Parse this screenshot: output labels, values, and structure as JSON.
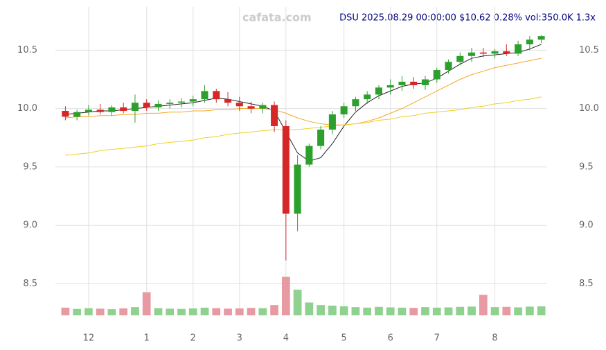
{
  "chart_data": {
    "type": "candlestick",
    "title": "DSU 2025.08.29 00:00:00 $10.62 0.28% vol:350.0K 1.3x",
    "watermark": "cafata.com",
    "categories": [
      null,
      null,
      "12",
      null,
      null,
      null,
      null,
      "1",
      null,
      null,
      null,
      "2",
      null,
      null,
      null,
      "3",
      null,
      null,
      null,
      "4",
      null,
      null,
      null,
      null,
      "5",
      null,
      null,
      null,
      "6",
      null,
      null,
      null,
      "7",
      null,
      null,
      null,
      null,
      "8",
      null,
      null,
      null,
      null
    ],
    "open": [
      9.98,
      9.93,
      9.97,
      9.99,
      9.97,
      10.01,
      9.98,
      10.05,
      10.01,
      10.04,
      10.05,
      10.06,
      10.08,
      10.15,
      10.08,
      10.05,
      10.02,
      10.0,
      10.03,
      9.85,
      9.1,
      9.52,
      9.68,
      9.82,
      9.95,
      10.02,
      10.08,
      10.12,
      10.18,
      10.2,
      10.23,
      10.2,
      10.25,
      10.33,
      10.4,
      10.45,
      10.48,
      10.47,
      10.49,
      10.47,
      10.55,
      10.59
    ],
    "high": [
      10.02,
      9.99,
      10.03,
      10.04,
      10.03,
      10.05,
      10.12,
      10.08,
      10.07,
      10.08,
      10.09,
      10.11,
      10.2,
      10.17,
      10.14,
      10.1,
      10.06,
      10.05,
      10.06,
      9.9,
      9.6,
      9.7,
      9.85,
      9.98,
      10.05,
      10.1,
      10.15,
      10.2,
      10.25,
      10.28,
      10.27,
      10.28,
      10.35,
      10.42,
      10.48,
      10.52,
      10.52,
      10.51,
      10.55,
      10.58,
      10.62,
      10.63
    ],
    "low": [
      9.9,
      9.9,
      9.94,
      9.95,
      9.94,
      9.96,
      9.88,
      9.98,
      9.98,
      10.0,
      10.01,
      10.02,
      10.05,
      10.05,
      10.02,
      9.98,
      9.96,
      9.96,
      9.8,
      8.7,
      8.95,
      9.5,
      9.65,
      9.78,
      9.92,
      9.98,
      10.04,
      10.08,
      10.12,
      10.15,
      10.17,
      10.16,
      10.22,
      10.3,
      10.37,
      10.4,
      10.44,
      10.43,
      10.45,
      10.45,
      10.5,
      10.56
    ],
    "close": [
      9.93,
      9.97,
      9.99,
      9.97,
      10.01,
      9.98,
      10.05,
      10.01,
      10.04,
      10.05,
      10.06,
      10.08,
      10.15,
      10.08,
      10.05,
      10.02,
      10.0,
      10.03,
      9.85,
      9.1,
      9.52,
      9.68,
      9.82,
      9.95,
      10.02,
      10.08,
      10.12,
      10.18,
      10.2,
      10.23,
      10.2,
      10.25,
      10.33,
      10.4,
      10.45,
      10.48,
      10.47,
      10.49,
      10.47,
      10.55,
      10.59,
      10.62
    ],
    "up_color": "#2ca02c",
    "down_color": "#d62728",
    "lines": [
      {
        "color": "#222222",
        "values": [
          9.95,
          9.96,
          9.97,
          9.98,
          9.98,
          9.99,
          10.0,
          10.01,
          10.02,
          10.03,
          10.04,
          10.05,
          10.07,
          10.09,
          10.08,
          10.06,
          10.04,
          10.02,
          9.98,
          9.8,
          9.62,
          9.55,
          9.58,
          9.7,
          9.85,
          9.97,
          10.05,
          10.11,
          10.15,
          10.19,
          10.21,
          10.22,
          10.26,
          10.32,
          10.38,
          10.43,
          10.45,
          10.46,
          10.47,
          10.48,
          10.51,
          10.55
        ]
      },
      {
        "color": "#f5a623",
        "values": [
          9.92,
          9.93,
          9.93,
          9.94,
          9.94,
          9.95,
          9.95,
          9.96,
          9.96,
          9.97,
          9.97,
          9.98,
          9.98,
          9.99,
          9.99,
          10.0,
          10.0,
          10.0,
          9.99,
          9.96,
          9.92,
          9.89,
          9.87,
          9.86,
          9.86,
          9.87,
          9.89,
          9.92,
          9.96,
          10.0,
          10.05,
          10.1,
          10.15,
          10.2,
          10.25,
          10.29,
          10.32,
          10.35,
          10.37,
          10.39,
          10.41,
          10.43
        ]
      },
      {
        "color": "#f0d020",
        "values": [
          9.6,
          9.61,
          9.62,
          9.64,
          9.65,
          9.66,
          9.67,
          9.68,
          9.7,
          9.71,
          9.72,
          9.73,
          9.75,
          9.76,
          9.78,
          9.79,
          9.8,
          9.81,
          9.82,
          9.82,
          9.82,
          9.83,
          9.84,
          9.85,
          9.86,
          9.87,
          9.88,
          9.9,
          9.91,
          9.93,
          9.94,
          9.96,
          9.97,
          9.98,
          9.99,
          10.01,
          10.02,
          10.04,
          10.05,
          10.07,
          10.08,
          10.1
        ]
      }
    ],
    "volume": {
      "axis": "y2",
      "values": [
        300,
        250,
        280,
        260,
        240,
        270,
        320,
        900,
        280,
        260,
        250,
        270,
        300,
        280,
        260,
        270,
        290,
        280,
        400,
        1500,
        1000,
        500,
        400,
        380,
        350,
        320,
        300,
        330,
        310,
        300,
        290,
        320,
        300,
        310,
        330,
        340,
        800,
        320,
        330,
        310,
        340,
        350
      ]
    },
    "ylim": [
      8.23,
      10.87
    ],
    "yticks": [
      8.5,
      {
        "value": 9,
        "label": "9.0"
      },
      9.5,
      {
        "value": 10,
        "label": "10.0"
      },
      10.5
    ],
    "y2lim": [
      0,
      12000
    ],
    "grid": true
  }
}
